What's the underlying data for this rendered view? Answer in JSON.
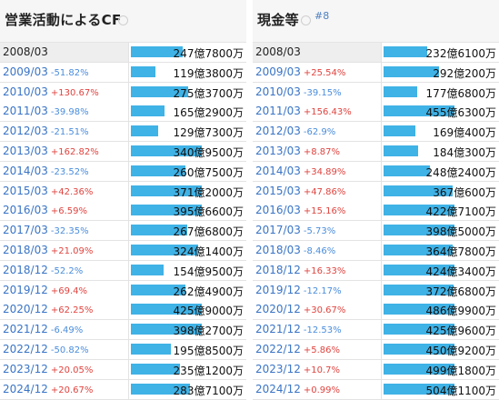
{
  "colors": {
    "bar": "#3fb2e6",
    "up": "#e0443f",
    "down": "#4a8ddc",
    "year": "#3974c6"
  },
  "panels": [
    {
      "title": "営業活動によるCF",
      "rank": "",
      "rows": [
        {
          "year": "2008/03",
          "change": "",
          "dir": "none",
          "value": "247億7800万",
          "ratio": 0.73
        },
        {
          "year": "2009/03",
          "change": "-51.82%",
          "dir": "down",
          "value": "119億3800万",
          "ratio": 0.35
        },
        {
          "year": "2010/03",
          "change": "+130.67%",
          "dir": "up",
          "value": "275億3700万",
          "ratio": 0.81
        },
        {
          "year": "2011/03",
          "change": "-39.98%",
          "dir": "down",
          "value": "165億2900万",
          "ratio": 0.48
        },
        {
          "year": "2012/03",
          "change": "-21.51%",
          "dir": "down",
          "value": "129億7300万",
          "ratio": 0.38
        },
        {
          "year": "2013/03",
          "change": "+162.82%",
          "dir": "up",
          "value": "340億9500万",
          "ratio": 1.0
        },
        {
          "year": "2014/03",
          "change": "-23.52%",
          "dir": "down",
          "value": "260億7500万",
          "ratio": 0.77
        },
        {
          "year": "2015/03",
          "change": "+42.36%",
          "dir": "up",
          "value": "371億2000万",
          "ratio": 1.0
        },
        {
          "year": "2016/03",
          "change": "+6.59%",
          "dir": "up",
          "value": "395億6600万",
          "ratio": 1.0
        },
        {
          "year": "2017/03",
          "change": "-32.35%",
          "dir": "down",
          "value": "267億6800万",
          "ratio": 0.79
        },
        {
          "year": "2018/03",
          "change": "+21.09%",
          "dir": "up",
          "value": "324億1400万",
          "ratio": 0.95
        },
        {
          "year": "2018/12",
          "change": "-52.2%",
          "dir": "down",
          "value": "154億9500万",
          "ratio": 0.46
        },
        {
          "year": "2019/12",
          "change": "+69.4%",
          "dir": "up",
          "value": "262億4900万",
          "ratio": 0.77
        },
        {
          "year": "2020/12",
          "change": "+62.25%",
          "dir": "up",
          "value": "425億9000万",
          "ratio": 1.0
        },
        {
          "year": "2021/12",
          "change": "-6.49%",
          "dir": "down",
          "value": "398億2700万",
          "ratio": 1.0
        },
        {
          "year": "2022/12",
          "change": "-50.82%",
          "dir": "down",
          "value": "195億8500万",
          "ratio": 0.57
        },
        {
          "year": "2023/12",
          "change": "+20.05%",
          "dir": "up",
          "value": "235億1200万",
          "ratio": 0.69
        },
        {
          "year": "2024/12",
          "change": "+20.67%",
          "dir": "up",
          "value": "283億7100万",
          "ratio": 0.83
        }
      ]
    },
    {
      "title": "現金等",
      "rank": "#8",
      "rows": [
        {
          "year": "2008/03",
          "change": "",
          "dir": "none",
          "value": "232億6100万",
          "ratio": 0.62
        },
        {
          "year": "2009/03",
          "change": "+25.54%",
          "dir": "up",
          "value": "292億200万",
          "ratio": 0.78
        },
        {
          "year": "2010/03",
          "change": "-39.15%",
          "dir": "down",
          "value": "177億6800万",
          "ratio": 0.47
        },
        {
          "year": "2011/03",
          "change": "+156.43%",
          "dir": "up",
          "value": "455億6300万",
          "ratio": 1.0
        },
        {
          "year": "2012/03",
          "change": "-62.9%",
          "dir": "down",
          "value": "169億400万",
          "ratio": 0.45
        },
        {
          "year": "2013/03",
          "change": "+8.87%",
          "dir": "up",
          "value": "184億300万",
          "ratio": 0.49
        },
        {
          "year": "2014/03",
          "change": "+34.89%",
          "dir": "up",
          "value": "248億2400万",
          "ratio": 0.66
        },
        {
          "year": "2015/03",
          "change": "+47.86%",
          "dir": "up",
          "value": "367億600万",
          "ratio": 0.98
        },
        {
          "year": "2016/03",
          "change": "+15.16%",
          "dir": "up",
          "value": "422億7100万",
          "ratio": 1.0
        },
        {
          "year": "2017/03",
          "change": "-5.73%",
          "dir": "down",
          "value": "398億5000万",
          "ratio": 1.0
        },
        {
          "year": "2018/03",
          "change": "-8.46%",
          "dir": "down",
          "value": "364億7800万",
          "ratio": 0.97
        },
        {
          "year": "2018/12",
          "change": "+16.33%",
          "dir": "up",
          "value": "424億3400万",
          "ratio": 1.0
        },
        {
          "year": "2019/12",
          "change": "-12.17%",
          "dir": "down",
          "value": "372億6800万",
          "ratio": 0.99
        },
        {
          "year": "2020/12",
          "change": "+30.67%",
          "dir": "up",
          "value": "486億9900万",
          "ratio": 1.0
        },
        {
          "year": "2021/12",
          "change": "-12.53%",
          "dir": "down",
          "value": "425億9600万",
          "ratio": 1.0
        },
        {
          "year": "2022/12",
          "change": "+5.86%",
          "dir": "up",
          "value": "450億9200万",
          "ratio": 1.0
        },
        {
          "year": "2023/12",
          "change": "+10.7%",
          "dir": "up",
          "value": "499億1800万",
          "ratio": 1.0
        },
        {
          "year": "2024/12",
          "change": "+0.99%",
          "dir": "up",
          "value": "504億1100万",
          "ratio": 1.0
        }
      ]
    }
  ]
}
